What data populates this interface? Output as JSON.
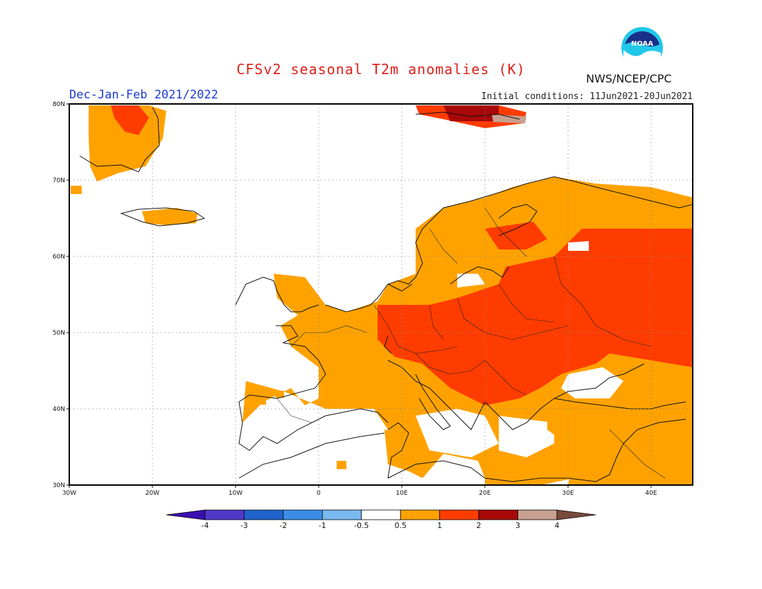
{
  "header": {
    "title": "CFSv2 seasonal T2m anomalies (K)",
    "season": "Dec-Jan-Feb 2021/2022",
    "initial_conditions": "Initial conditions: 11Jun2021-20Jun2021",
    "agency": "NWS/NCEP/CPC",
    "logo_text": "NOAA"
  },
  "map": {
    "lon_range": [
      -30,
      45
    ],
    "lat_range": [
      30,
      80
    ],
    "lon_ticks": [
      "30W",
      "20W",
      "10W",
      "0",
      "10E",
      "20E",
      "30E",
      "40E"
    ],
    "lat_ticks": [
      "30N",
      "40N",
      "50N",
      "60N",
      "70N",
      "80N"
    ],
    "grid": true
  },
  "colorbar": {
    "labels": [
      "-4",
      "-3",
      "-2",
      "-1",
      "-0.5",
      "0.5",
      "1",
      "2",
      "3",
      "4"
    ],
    "colors": [
      "#3a10b0",
      "#5038c8",
      "#1f63cc",
      "#3a8ee8",
      "#7ab8f0",
      "#ffffff",
      "#ffa200",
      "#ff3c00",
      "#a80808",
      "#c8a090",
      "#7a4a3c"
    ]
  }
}
